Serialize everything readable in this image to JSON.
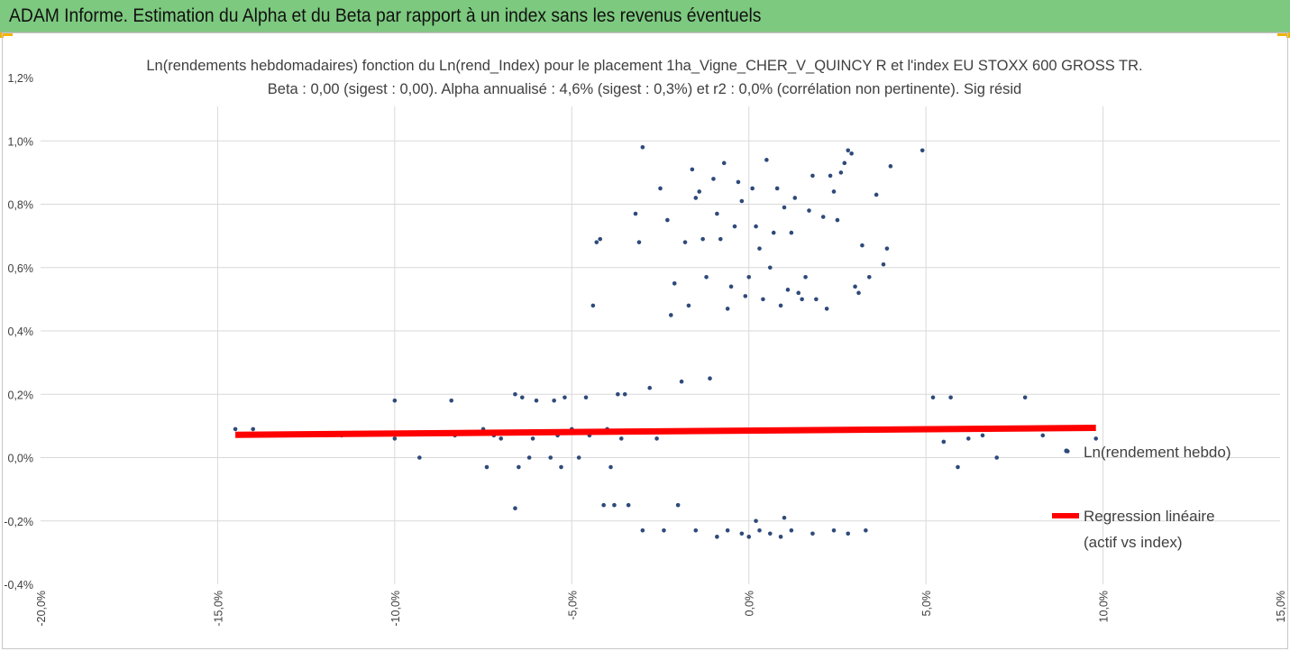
{
  "banner": {
    "title": "ADAM Informe. Estimation du Alpha et du Beta par rapport à un index sans les revenus éventuels",
    "background": "#7dc97f",
    "corner_accent": "#f0b400"
  },
  "chart_data": {
    "type": "scatter",
    "title": "Ln(rendements hebdomadaires) fonction du Ln(rend_Index) pour le placement 1ha_Vigne_CHER_V_QUINCY R et l'index EU STOXX 600 GROSS TR.",
    "subtitle": "Beta : 0,00 (sigest : 0,00). Alpha annualisé : 4,6% (sigest : 0,3%) et r2 : 0,0% (corrélation non pertinente). Sig résid",
    "xlabel": "",
    "ylabel": "",
    "xlim": [
      -0.2,
      0.15
    ],
    "ylim": [
      -0.004,
      0.012
    ],
    "grid": {
      "vertical": true,
      "horizontal": true
    },
    "x_ticks": [
      -0.2,
      -0.15,
      -0.1,
      -0.05,
      0.0,
      0.05,
      0.1,
      0.15
    ],
    "x_tick_labels": [
      "-20,0%",
      "-15,0%",
      "-10,0%",
      "-5,0%",
      "0,0%",
      "5,0%",
      "10,0%",
      "15,0%"
    ],
    "y_ticks": [
      -0.004,
      -0.002,
      0.0,
      0.002,
      0.004,
      0.006,
      0.008,
      0.01,
      0.012
    ],
    "y_tick_labels": [
      "-0,4%",
      "-0,2%",
      "0,0%",
      "0,2%",
      "0,4%",
      "0,6%",
      "0,8%",
      "1,0%",
      "1,2%"
    ],
    "legend_position": "right",
    "series": [
      {
        "name": "Ln(rendement hebdo)",
        "type": "scatter",
        "color": "#2e4a7a",
        "points": [
          [
            -0.145,
            0.0009
          ],
          [
            -0.14,
            0.0009
          ],
          [
            -0.115,
            0.0007
          ],
          [
            -0.1,
            0.0006
          ],
          [
            -0.1,
            0.0018
          ],
          [
            -0.093,
            0.0
          ],
          [
            -0.084,
            0.0018
          ],
          [
            -0.083,
            0.0007
          ],
          [
            -0.075,
            0.0009
          ],
          [
            -0.074,
            -0.0003
          ],
          [
            -0.072,
            0.0007
          ],
          [
            -0.07,
            0.0006
          ],
          [
            -0.066,
            0.002
          ],
          [
            -0.066,
            -0.0016
          ],
          [
            -0.065,
            -0.0003
          ],
          [
            -0.064,
            0.0019
          ],
          [
            -0.062,
            0.0
          ],
          [
            -0.061,
            0.0006
          ],
          [
            -0.06,
            0.0018
          ],
          [
            -0.058,
            0.0008
          ],
          [
            -0.056,
            0.0
          ],
          [
            -0.055,
            0.0018
          ],
          [
            -0.054,
            0.0007
          ],
          [
            -0.053,
            -0.0003
          ],
          [
            -0.052,
            0.0019
          ],
          [
            -0.05,
            0.0009
          ],
          [
            -0.048,
            0.0
          ],
          [
            -0.046,
            0.0019
          ],
          [
            -0.045,
            0.0007
          ],
          [
            -0.044,
            0.0048
          ],
          [
            -0.043,
            0.0068
          ],
          [
            -0.042,
            0.0069
          ],
          [
            -0.041,
            -0.0015
          ],
          [
            -0.04,
            0.0009
          ],
          [
            -0.039,
            -0.0003
          ],
          [
            -0.038,
            -0.0015
          ],
          [
            -0.037,
            0.002
          ],
          [
            -0.036,
            0.0006
          ],
          [
            -0.035,
            0.002
          ],
          [
            -0.034,
            -0.0015
          ],
          [
            -0.033,
            0.0008
          ],
          [
            -0.032,
            0.0077
          ],
          [
            -0.031,
            0.0068
          ],
          [
            -0.03,
            0.0098
          ],
          [
            -0.028,
            0.0022
          ],
          [
            -0.026,
            0.0006
          ],
          [
            -0.025,
            0.0085
          ],
          [
            -0.024,
            -0.0023
          ],
          [
            -0.023,
            0.0075
          ],
          [
            -0.022,
            0.0045
          ],
          [
            -0.021,
            0.0055
          ],
          [
            -0.02,
            -0.0015
          ],
          [
            -0.019,
            0.0024
          ],
          [
            -0.018,
            0.0068
          ],
          [
            -0.017,
            0.0048
          ],
          [
            -0.016,
            0.0091
          ],
          [
            -0.015,
            0.0082
          ],
          [
            -0.014,
            0.0084
          ],
          [
            -0.013,
            0.0069
          ],
          [
            -0.012,
            0.0057
          ],
          [
            -0.011,
            0.0025
          ],
          [
            -0.01,
            0.0088
          ],
          [
            -0.009,
            0.0077
          ],
          [
            -0.008,
            0.0069
          ],
          [
            -0.007,
            0.0093
          ],
          [
            -0.006,
            0.0047
          ],
          [
            -0.005,
            0.0054
          ],
          [
            -0.004,
            0.0073
          ],
          [
            -0.003,
            0.0087
          ],
          [
            -0.002,
            0.0081
          ],
          [
            -0.001,
            0.0051
          ],
          [
            0.0,
            0.0057
          ],
          [
            0.001,
            0.0085
          ],
          [
            0.002,
            0.0073
          ],
          [
            0.003,
            0.0066
          ],
          [
            0.004,
            0.005
          ],
          [
            0.005,
            0.0094
          ],
          [
            0.006,
            0.006
          ],
          [
            0.007,
            0.0071
          ],
          [
            0.008,
            0.0085
          ],
          [
            0.009,
            0.0048
          ],
          [
            0.01,
            0.0079
          ],
          [
            0.011,
            0.0053
          ],
          [
            0.012,
            0.0071
          ],
          [
            0.013,
            0.0082
          ],
          [
            0.014,
            0.0052
          ],
          [
            0.015,
            0.005
          ],
          [
            0.016,
            0.0057
          ],
          [
            0.017,
            0.0078
          ],
          [
            0.018,
            0.0089
          ],
          [
            0.019,
            0.005
          ],
          [
            0.021,
            0.0076
          ],
          [
            0.022,
            0.0047
          ],
          [
            0.023,
            0.0089
          ],
          [
            0.024,
            0.0084
          ],
          [
            0.025,
            0.0075
          ],
          [
            0.026,
            0.009
          ],
          [
            0.027,
            0.0093
          ],
          [
            0.028,
            0.0097
          ],
          [
            0.029,
            0.0096
          ],
          [
            0.03,
            0.0054
          ],
          [
            0.031,
            0.0052
          ],
          [
            0.032,
            0.0067
          ],
          [
            0.034,
            0.0057
          ],
          [
            0.036,
            0.0083
          ],
          [
            0.038,
            0.0061
          ],
          [
            0.039,
            0.0066
          ],
          [
            0.04,
            0.0092
          ],
          [
            0.049,
            0.0097
          ],
          [
            0.052,
            0.0019
          ],
          [
            0.055,
            0.0005
          ],
          [
            0.057,
            0.0019
          ],
          [
            0.059,
            -0.0003
          ],
          [
            0.062,
            0.0006
          ],
          [
            0.066,
            0.0007
          ],
          [
            0.07,
            0.0
          ],
          [
            0.078,
            0.0019
          ],
          [
            0.083,
            0.0007
          ],
          [
            0.09,
            0.0002
          ],
          [
            0.098,
            0.0006
          ],
          [
            -0.03,
            -0.0023
          ],
          [
            -0.015,
            -0.0023
          ],
          [
            -0.009,
            -0.0025
          ],
          [
            -0.006,
            -0.0023
          ],
          [
            -0.002,
            -0.0024
          ],
          [
            0.0,
            -0.0025
          ],
          [
            0.003,
            -0.0023
          ],
          [
            0.006,
            -0.0024
          ],
          [
            0.009,
            -0.0025
          ],
          [
            0.012,
            -0.0023
          ],
          [
            0.018,
            -0.0024
          ],
          [
            0.024,
            -0.0023
          ],
          [
            0.028,
            -0.0024
          ],
          [
            0.033,
            -0.0023
          ],
          [
            0.01,
            -0.0019
          ],
          [
            0.002,
            -0.002
          ]
        ]
      },
      {
        "name": "Regression linéaire (actif vs index)",
        "name_line1": "Regression linéaire",
        "name_line2": "(actif vs index)",
        "type": "line",
        "color": "#ff0000",
        "points": [
          [
            -0.145,
            0.00072
          ],
          [
            0.098,
            0.00094
          ]
        ]
      }
    ]
  }
}
